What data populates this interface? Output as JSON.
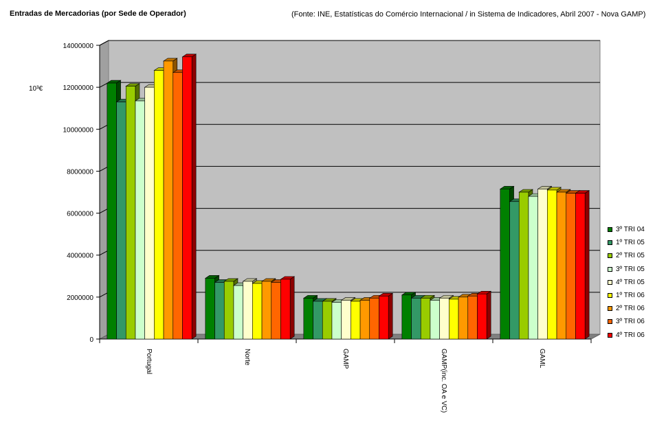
{
  "header": {
    "title": "Entradas de Mercadorias (por Sede de Operador)",
    "source": "(Fonte: INE, Estatísticas do Comércio Internacional  / in Sistema de Indicadores, Abril 2007 - Nova GAMP)"
  },
  "chart_data": {
    "type": "bar",
    "title": "Entradas de Mercadorias (por Sede de Operador)",
    "ylabel": "10³€",
    "xlabel": "",
    "ylim": [
      0,
      14000000
    ],
    "yticks": [
      0,
      2000000,
      4000000,
      6000000,
      8000000,
      10000000,
      12000000,
      14000000
    ],
    "ytick_labels": [
      "0",
      "2000000",
      "4000000",
      "6000000",
      "8000000",
      "10000000",
      "12000000",
      "14000000"
    ],
    "grid": true,
    "legend_position": "right",
    "categories": [
      "Portugal",
      "Norte",
      "GAMP",
      "GAMP(inc. OA e VC)",
      "GAML"
    ],
    "series": [
      {
        "name": "3º TRI 04",
        "color": "#008000",
        "values": [
          12200000,
          2900000,
          1950000,
          2100000,
          7150000
        ]
      },
      {
        "name": "1º TRI 05",
        "color": "#339966",
        "values": [
          11300000,
          2700000,
          1800000,
          1950000,
          6550000
        ]
      },
      {
        "name": "2º TRI 05",
        "color": "#99CC00",
        "values": [
          12050000,
          2750000,
          1800000,
          1950000,
          7000000
        ]
      },
      {
        "name": "3º TRI 05",
        "color": "#CCFFCC",
        "values": [
          11350000,
          2550000,
          1750000,
          1850000,
          6800000
        ]
      },
      {
        "name": "4º TRI 05",
        "color": "#FFFFCC",
        "values": [
          12000000,
          2750000,
          1850000,
          1950000,
          7150000
        ]
      },
      {
        "name": "1º TRI 06",
        "color": "#FFFF00",
        "values": [
          12800000,
          2650000,
          1800000,
          1900000,
          7100000
        ]
      },
      {
        "name": "2º TRI 06",
        "color": "#FF9900",
        "values": [
          13250000,
          2750000,
          1850000,
          2000000,
          7000000
        ]
      },
      {
        "name": "3º TRI 06",
        "color": "#FF6600",
        "values": [
          12700000,
          2700000,
          1950000,
          2050000,
          6950000
        ]
      },
      {
        "name": "4º TRI 06",
        "color": "#FF0000",
        "values": [
          13450000,
          2850000,
          2050000,
          2150000,
          6950000
        ]
      }
    ]
  }
}
